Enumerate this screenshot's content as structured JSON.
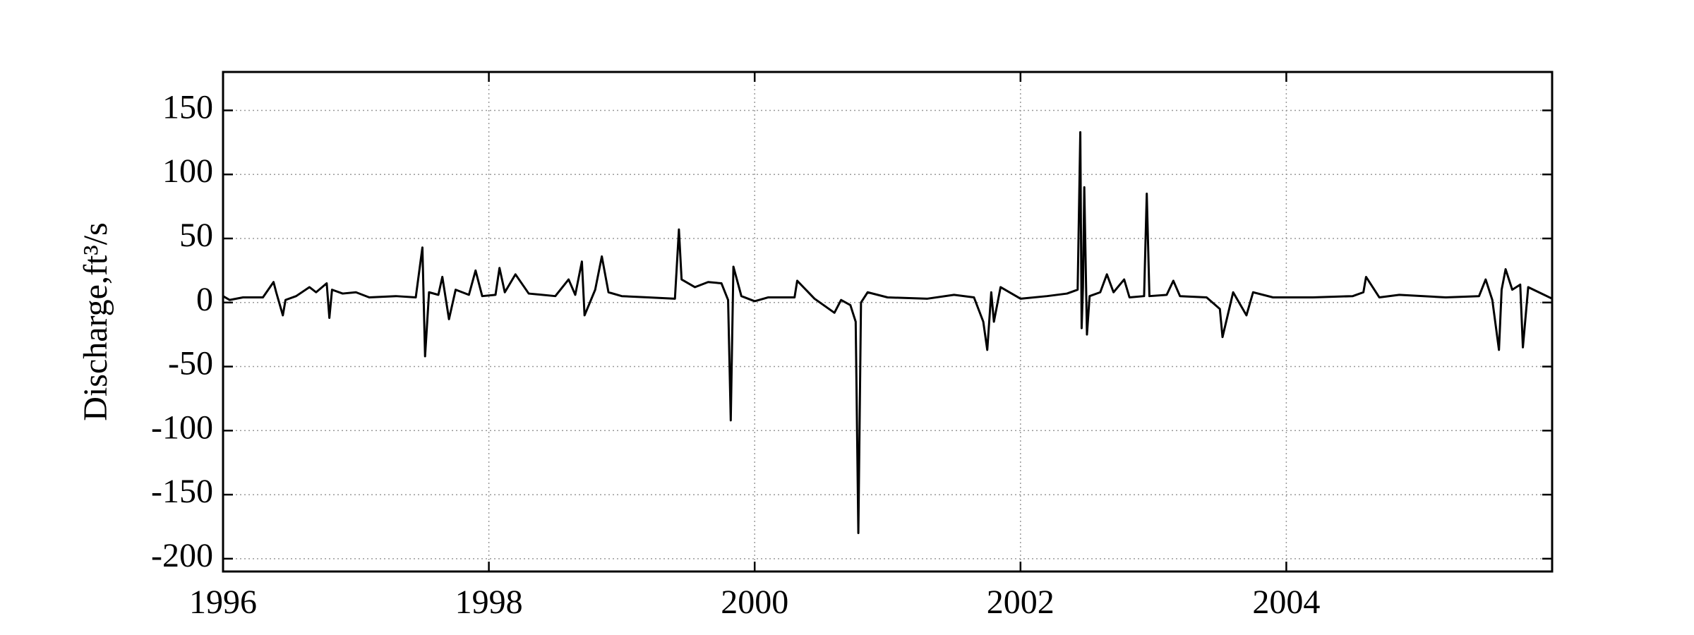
{
  "chart_data": {
    "type": "line",
    "y_label": "Discharge,ft³/s",
    "xlim": [
      1996,
      2006
    ],
    "xticks": [
      1996,
      1998,
      2000,
      2002,
      2004
    ],
    "ylim": [
      -210,
      180
    ],
    "yticks": [
      -200,
      -150,
      -100,
      -50,
      0,
      50,
      100,
      150
    ],
    "grid": true,
    "series": [
      {
        "color": "#000000",
        "x": [
          1996.0,
          1996.05,
          1996.15,
          1996.3,
          1996.38,
          1996.4,
          1996.45,
          1996.47,
          1996.55,
          1996.65,
          1996.7,
          1996.78,
          1996.8,
          1996.82,
          1996.9,
          1997.0,
          1997.1,
          1997.3,
          1997.45,
          1997.5,
          1997.52,
          1997.55,
          1997.62,
          1997.65,
          1997.7,
          1997.75,
          1997.85,
          1997.9,
          1997.95,
          1998.05,
          1998.08,
          1998.12,
          1998.2,
          1998.3,
          1998.5,
          1998.6,
          1998.65,
          1998.7,
          1998.72,
          1998.8,
          1998.85,
          1998.9,
          1999.0,
          1999.2,
          1999.4,
          1999.43,
          1999.45,
          1999.55,
          1999.65,
          1999.75,
          1999.8,
          1999.82,
          1999.84,
          1999.9,
          2000.0,
          2000.1,
          2000.3,
          2000.32,
          2000.45,
          2000.6,
          2000.65,
          2000.72,
          2000.76,
          2000.78,
          2000.8,
          2000.85,
          2001.0,
          2001.3,
          2001.5,
          2001.65,
          2001.72,
          2001.75,
          2001.78,
          2001.8,
          2001.85,
          2002.0,
          2002.2,
          2002.35,
          2002.43,
          2002.45,
          2002.46,
          2002.47,
          2002.48,
          2002.5,
          2002.52,
          2002.6,
          2002.65,
          2002.7,
          2002.78,
          2002.82,
          2002.93,
          2002.95,
          2002.97,
          2003.1,
          2003.15,
          2003.2,
          2003.4,
          2003.5,
          2003.52,
          2003.6,
          2003.7,
          2003.75,
          2003.9,
          2004.2,
          2004.5,
          2004.58,
          2004.6,
          2004.7,
          2004.85,
          2005.2,
          2005.45,
          2005.5,
          2005.55,
          2005.6,
          2005.62,
          2005.65,
          2005.7,
          2005.76,
          2005.78,
          2005.82,
          2005.9,
          2006.0
        ],
        "values": [
          5,
          2,
          4,
          4,
          16,
          8,
          -10,
          2,
          5,
          12,
          8,
          15,
          -12,
          10,
          7,
          8,
          4,
          5,
          4,
          43,
          -42,
          8,
          6,
          20,
          -13,
          10,
          6,
          25,
          5,
          6,
          27,
          8,
          22,
          7,
          5,
          18,
          6,
          32,
          -10,
          10,
          36,
          8,
          5,
          4,
          3,
          57,
          18,
          12,
          16,
          15,
          2,
          -92,
          28,
          5,
          1,
          4,
          4,
          17,
          3,
          -8,
          2,
          -2,
          -15,
          -180,
          0,
          8,
          4,
          3,
          6,
          4,
          -15,
          -37,
          8,
          -15,
          12,
          3,
          5,
          7,
          10,
          133,
          -20,
          12,
          90,
          -25,
          5,
          8,
          22,
          8,
          18,
          4,
          5,
          85,
          5,
          6,
          17,
          5,
          4,
          -5,
          -27,
          8,
          -10,
          8,
          4,
          4,
          5,
          8,
          20,
          4,
          6,
          4,
          5,
          18,
          2,
          -37,
          10,
          26,
          10,
          14,
          -35,
          12,
          8,
          3
        ]
      }
    ]
  }
}
